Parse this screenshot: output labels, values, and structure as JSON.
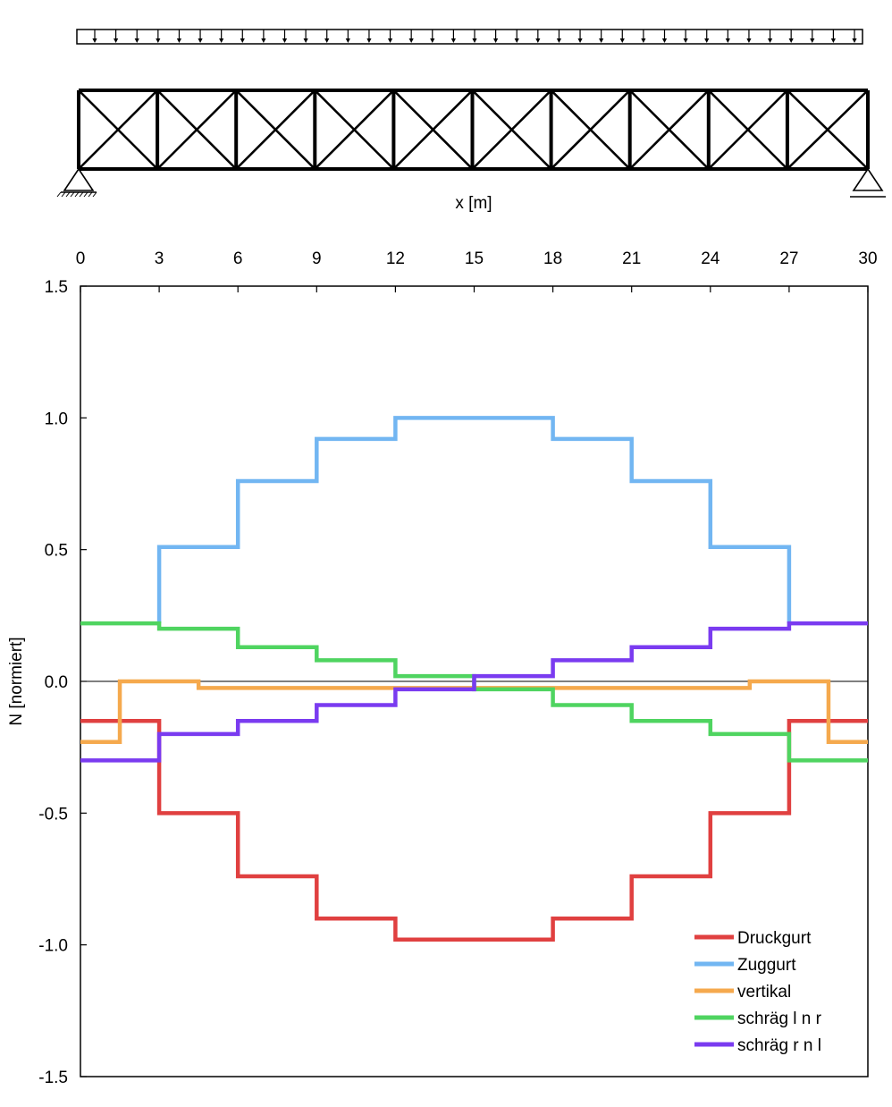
{
  "chart_data": {
    "type": "line",
    "step": true,
    "xlabel": "x [m]",
    "ylabel": "N [normiert]",
    "xlim": [
      0,
      30
    ],
    "ylim": [
      -1.5,
      1.5
    ],
    "xticks": [
      0,
      3,
      6,
      9,
      12,
      15,
      18,
      21,
      24,
      27,
      30
    ],
    "xtick_labels": [
      "0",
      "3",
      "6",
      "9",
      "12",
      "15",
      "18",
      "21",
      "24",
      "27",
      "30"
    ],
    "yticks": [
      1.5,
      1.0,
      0.5,
      0.0,
      -0.5,
      -1.0,
      -1.5
    ],
    "ytick_labels": [
      "1.5",
      "1.0",
      "0.5",
      "0.0",
      "-0.5",
      "-1.0",
      "-1.5"
    ],
    "zero_line": true,
    "grid": false,
    "legend_position": "bottom-right",
    "truss": {
      "panel_length": 3,
      "panels": 10,
      "load": "uniform",
      "supports": [
        "pinned-left",
        "roller-right"
      ]
    },
    "series": [
      {
        "name": "Druckgurt",
        "color": "#e04040",
        "edges": [
          0,
          3,
          6,
          9,
          12,
          15,
          18,
          21,
          24,
          27,
          30
        ],
        "values": [
          -0.15,
          -0.5,
          -0.74,
          -0.9,
          -0.98,
          -0.98,
          -0.9,
          -0.74,
          -0.5,
          -0.15
        ]
      },
      {
        "name": "Zuggurt",
        "color": "#72b6f2",
        "edges": [
          3,
          6,
          9,
          12,
          15,
          18,
          21,
          24,
          27
        ],
        "values": [
          0.51,
          0.76,
          0.92,
          1.0,
          1.0,
          0.92,
          0.76,
          0.51
        ],
        "start": 0.22,
        "end": 0.22
      },
      {
        "name": "vertikal",
        "color": "#f5a94d",
        "edges": [
          0,
          1.5,
          4.5,
          7.5,
          10.5,
          13.5,
          16.5,
          19.5,
          22.5,
          25.5,
          28.5,
          30
        ],
        "values": [
          -0.23,
          0.0,
          -0.025,
          -0.025,
          -0.025,
          -0.025,
          -0.025,
          -0.025,
          -0.025,
          0.0,
          -0.23
        ]
      },
      {
        "name": "schräg l n r",
        "color": "#4fd460",
        "edges": [
          0,
          3,
          6,
          9,
          12,
          15,
          18,
          21,
          24,
          27,
          30
        ],
        "values": [
          0.22,
          0.2,
          0.13,
          0.08,
          0.02,
          -0.03,
          -0.09,
          -0.15,
          -0.2,
          -0.3
        ]
      },
      {
        "name": "schräg r n l",
        "color": "#7a3bf0",
        "edges": [
          0,
          3,
          6,
          9,
          12,
          15,
          18,
          21,
          24,
          27,
          30
        ],
        "values": [
          -0.3,
          -0.2,
          -0.15,
          -0.09,
          -0.03,
          0.02,
          0.08,
          0.13,
          0.2,
          0.22
        ]
      }
    ]
  }
}
